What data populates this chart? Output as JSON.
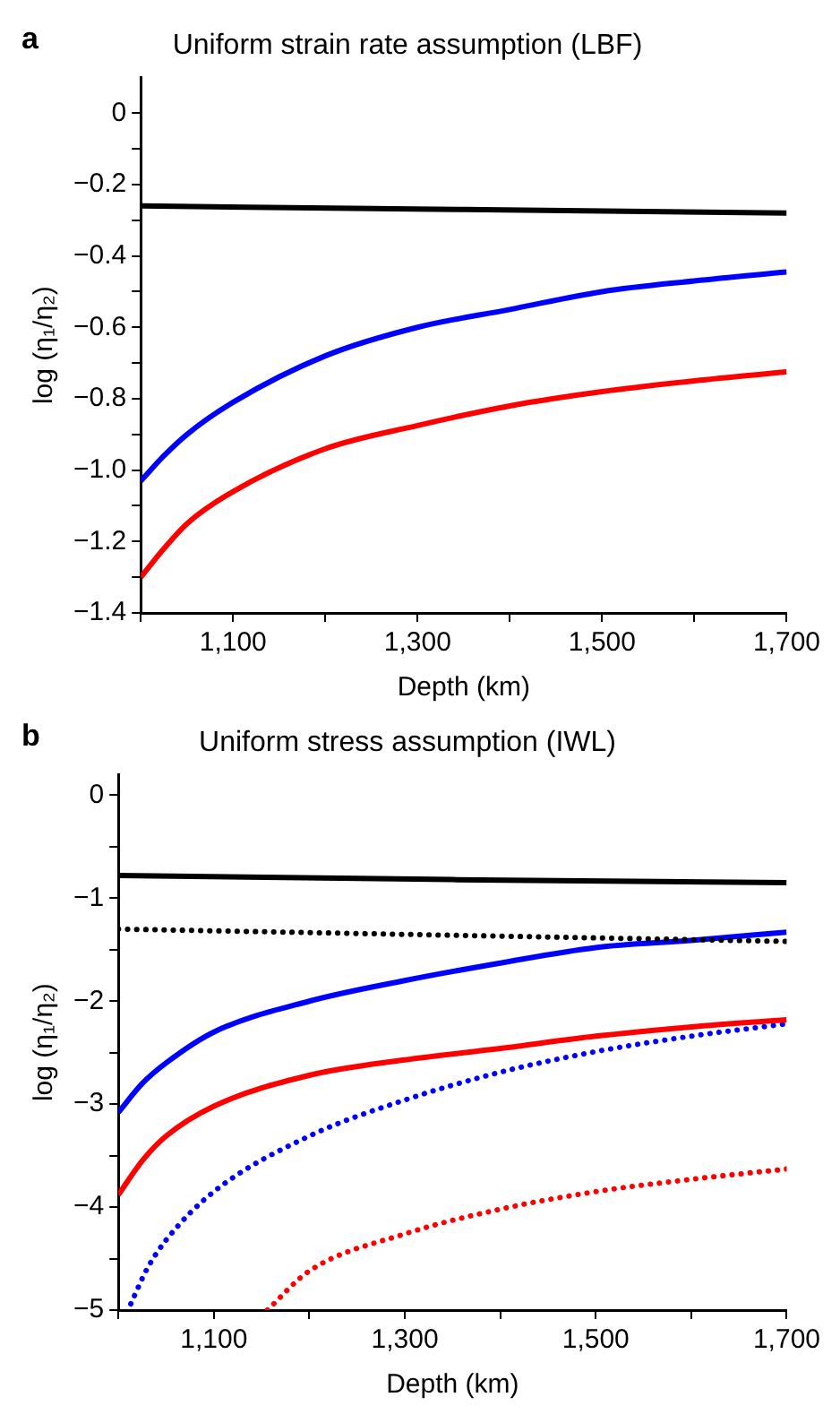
{
  "chart_data": [
    {
      "type": "line",
      "title": "Uniform strain rate assumption (LBF)",
      "xlabel": "Depth (km)",
      "ylabel": "log (η₁/η₂)",
      "annotations": [
        "a"
      ],
      "xlim": [
        1000,
        1700
      ],
      "xticks": [
        {
          "value": 1000,
          "label": null
        },
        {
          "value": 1100,
          "label": "1,100"
        },
        {
          "value": 1200,
          "label": null
        },
        {
          "value": 1300,
          "label": "1,300"
        },
        {
          "value": 1400,
          "label": null
        },
        {
          "value": 1500,
          "label": "1,500"
        },
        {
          "value": 1600,
          "label": null
        },
        {
          "value": 1700,
          "label": "1,700"
        }
      ],
      "ylim": [
        -1.4,
        0.1
      ],
      "yticks": [
        {
          "value": -1.4,
          "label": "−1.4"
        },
        {
          "value": -1.3,
          "label": null
        },
        {
          "value": -1.2,
          "label": "−1.2"
        },
        {
          "value": -1.1,
          "label": null
        },
        {
          "value": -1.0,
          "label": "−1.0"
        },
        {
          "value": -0.9,
          "label": null
        },
        {
          "value": -0.8,
          "label": "−0.8"
        },
        {
          "value": -0.7,
          "label": null
        },
        {
          "value": -0.6,
          "label": "−0.6"
        },
        {
          "value": -0.5,
          "label": null
        },
        {
          "value": -0.4,
          "label": "−0.4"
        },
        {
          "value": -0.3,
          "label": null
        },
        {
          "value": -0.2,
          "label": "−0.2"
        },
        {
          "value": -0.1,
          "label": null
        },
        0
      ],
      "grid": false,
      "legend": false,
      "series": [
        {
          "color": "#000000",
          "line_style": "solid",
          "x": [
            1000,
            1350,
            1700
          ],
          "values": [
            -0.26,
            -0.27,
            -0.28
          ]
        },
        {
          "color": "#0000ff",
          "line_style": "solid",
          "x": [
            1000,
            1025,
            1050,
            1100,
            1200,
            1300,
            1400,
            1500,
            1600,
            1700
          ],
          "values": [
            -1.03,
            -0.96,
            -0.9,
            -0.81,
            -0.68,
            -0.6,
            -0.55,
            -0.5,
            -0.47,
            -0.445
          ]
        },
        {
          "color": "#ff0000",
          "line_style": "solid",
          "x": [
            1000,
            1025,
            1050,
            1100,
            1200,
            1300,
            1400,
            1500,
            1600,
            1700
          ],
          "values": [
            -1.3,
            -1.22,
            -1.15,
            -1.06,
            -0.94,
            -0.875,
            -0.82,
            -0.78,
            -0.75,
            -0.725
          ]
        }
      ]
    },
    {
      "type": "line",
      "title": "Uniform stress assumption (IWL)",
      "xlabel": "Depth (km)",
      "ylabel": "log (η₁/η₂)",
      "annotations": [
        "b"
      ],
      "xlim": [
        1000,
        1700
      ],
      "xticks": [
        {
          "value": 1000,
          "label": null
        },
        {
          "value": 1100,
          "label": "1,100"
        },
        {
          "value": 1200,
          "label": null
        },
        {
          "value": 1300,
          "label": "1,300"
        },
        {
          "value": 1400,
          "label": null
        },
        {
          "value": 1500,
          "label": "1,500"
        },
        {
          "value": 1600,
          "label": null
        },
        {
          "value": 1700,
          "label": "1,700"
        }
      ],
      "ylim": [
        -5,
        0.2
      ],
      "yticks": [
        -5,
        {
          "value": -4.5,
          "label": null
        },
        -4,
        {
          "value": -3.5,
          "label": null
        },
        -3,
        {
          "value": -2.5,
          "label": null
        },
        -2,
        {
          "value": -1.5,
          "label": null
        },
        -1,
        {
          "value": -0.5,
          "label": null
        },
        0
      ],
      "grid": false,
      "legend": false,
      "series": [
        {
          "color": "#000000",
          "line_style": "solid",
          "x": [
            1000,
            1350,
            1700
          ],
          "values": [
            -0.78,
            -0.82,
            -0.85
          ]
        },
        {
          "color": "#000000",
          "line_style": "dotted",
          "x": [
            1000,
            1350,
            1700
          ],
          "values": [
            -1.3,
            -1.36,
            -1.42
          ]
        },
        {
          "color": "#0000ff",
          "line_style": "solid",
          "x": [
            1000,
            1025,
            1050,
            1100,
            1200,
            1300,
            1400,
            1500,
            1600,
            1700
          ],
          "values": [
            -3.08,
            -2.8,
            -2.6,
            -2.3,
            -2.0,
            -1.8,
            -1.63,
            -1.48,
            -1.41,
            -1.33
          ]
        },
        {
          "color": "#ff0000",
          "line_style": "solid",
          "x": [
            1000,
            1025,
            1050,
            1100,
            1200,
            1300,
            1400,
            1500,
            1600,
            1700
          ],
          "values": [
            -3.88,
            -3.55,
            -3.31,
            -3.02,
            -2.72,
            -2.57,
            -2.46,
            -2.34,
            -2.25,
            -2.18
          ]
        },
        {
          "color": "#0000ff",
          "line_style": "dotted",
          "x": [
            1013,
            1030,
            1050,
            1100,
            1200,
            1300,
            1400,
            1500,
            1600,
            1700
          ],
          "values": [
            -4.94,
            -4.6,
            -4.32,
            -3.85,
            -3.31,
            -2.96,
            -2.69,
            -2.49,
            -2.34,
            -2.22
          ]
        },
        {
          "color": "#ff0000",
          "line_style": "dotted",
          "x": [
            1156,
            1200,
            1300,
            1400,
            1500,
            1600,
            1700
          ],
          "values": [
            -5.0,
            -4.62,
            -4.26,
            -4.02,
            -3.85,
            -3.73,
            -3.63
          ]
        }
      ]
    }
  ]
}
